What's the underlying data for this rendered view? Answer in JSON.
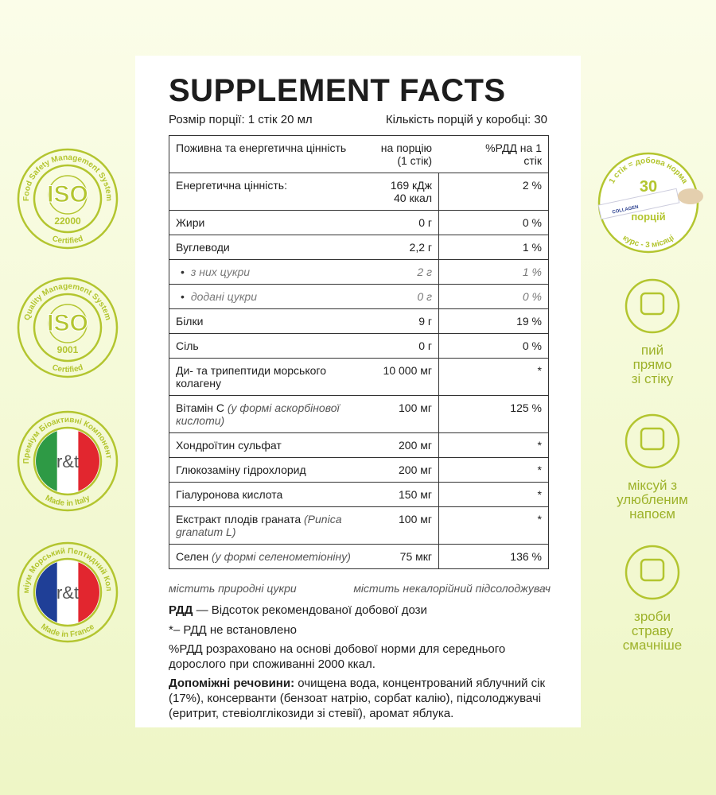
{
  "title": "SUPPLEMENT FACTS",
  "serving_size": "Розмір порції: 1 стік 20 мл",
  "servings_per_box": "Кількість порцій у коробці: 30",
  "table": {
    "header": [
      "Поживна та енергетична цінність",
      "на порцію (1 стік)",
      "%РДД на 1 стік"
    ],
    "rows": [
      {
        "name": "Енергетична цінність:",
        "amount": [
          "169 кДж",
          "40 ккал"
        ],
        "dv": "2 %"
      },
      {
        "name": "Жири",
        "amount": [
          "0 г"
        ],
        "dv": "0 %"
      },
      {
        "name": "Вуглеводи",
        "amount": [
          "2,2 г"
        ],
        "dv": "1 %",
        "subitems": [
          {
            "name": "з них цукри",
            "amount": "2 г",
            "dv": "1 %"
          },
          {
            "name": "додані цукри",
            "amount": "0 г",
            "dv": "0 %"
          }
        ]
      },
      {
        "name": "Білки",
        "amount": [
          "9 г"
        ],
        "dv": "19 %"
      },
      {
        "name": "Сіль",
        "amount": [
          "0 г"
        ],
        "dv": "0 %"
      },
      {
        "name": "Ди- та трипептиди морського колагену",
        "amount": [
          "10 000 мг"
        ],
        "dv": "*"
      },
      {
        "name": "Вітамін С",
        "note": "(у формі аскорбінової кислоти)",
        "amount": [
          "100 мг"
        ],
        "dv": "125 %"
      },
      {
        "name": "Хондроїтин сульфат",
        "amount": [
          "200 мг"
        ],
        "dv": "*"
      },
      {
        "name": "Глюкозаміну гідрохлорид",
        "amount": [
          "200 мг"
        ],
        "dv": "*"
      },
      {
        "name": "Гіалуронова кислота",
        "amount": [
          "150 мг"
        ],
        "dv": "*"
      },
      {
        "name": "Екстракт плодів граната",
        "note": "(Punica granatum L)",
        "amount": [
          "100 мг"
        ],
        "dv": "*"
      },
      {
        "name": "Селен",
        "note": "(у формі селенометіоніну)",
        "amount": [
          "75 мкг"
        ],
        "dv": "136 %"
      }
    ]
  },
  "footnotes": [
    "містить природні цукри",
    "містить некалорійний підсолоджувач"
  ],
  "notes": {
    "rdd_term": "РДД",
    "rdd_def": "— Відсоток рекомендованої добової дози",
    "star": "*– РДД не встановлено",
    "basis": "%РДД розраховано на основі добової норми для середнього дорослого при споживанні 2000 ккал.",
    "excipients_label": "Допоміжні речовини:",
    "excipients": "очищена вода, концентрований яблучний сік (17%), консерванти (бензоат натрію, сорбат калію), підсолоджувачі (еритрит, стевіолглікозиди зі стевії), аромат яблука."
  },
  "badges": [
    {
      "ring": "Food Safety Management System",
      "center": "ISO",
      "number": "22000",
      "bottom": "Certified"
    },
    {
      "ring": "Quality Management System",
      "center": "ISO",
      "number": "9001",
      "bottom": "Certified"
    },
    {
      "ring": "Преміум Біоактивні Компоненти",
      "center": "r&t",
      "flag": "italy",
      "bottom": "Made in Italy"
    },
    {
      "ring": "Преміум Морський Пептидний Колаген",
      "center": "r&t",
      "flag": "france",
      "bottom": "Made in France"
    }
  ],
  "serving_badge": {
    "ring": "1 стік = добова норма",
    "count": "30",
    "unit": "порцій",
    "bottom": "курс - 3 місяці",
    "stick_label": "COLLAGEN"
  },
  "tips": [
    {
      "lines": [
        "пий",
        "прямо",
        "зі стіку"
      ]
    },
    {
      "lines": [
        "міксуй з",
        "улюбленим",
        "напоєм"
      ]
    },
    {
      "lines": [
        "зроби",
        "страву",
        "смачніше"
      ]
    }
  ]
}
